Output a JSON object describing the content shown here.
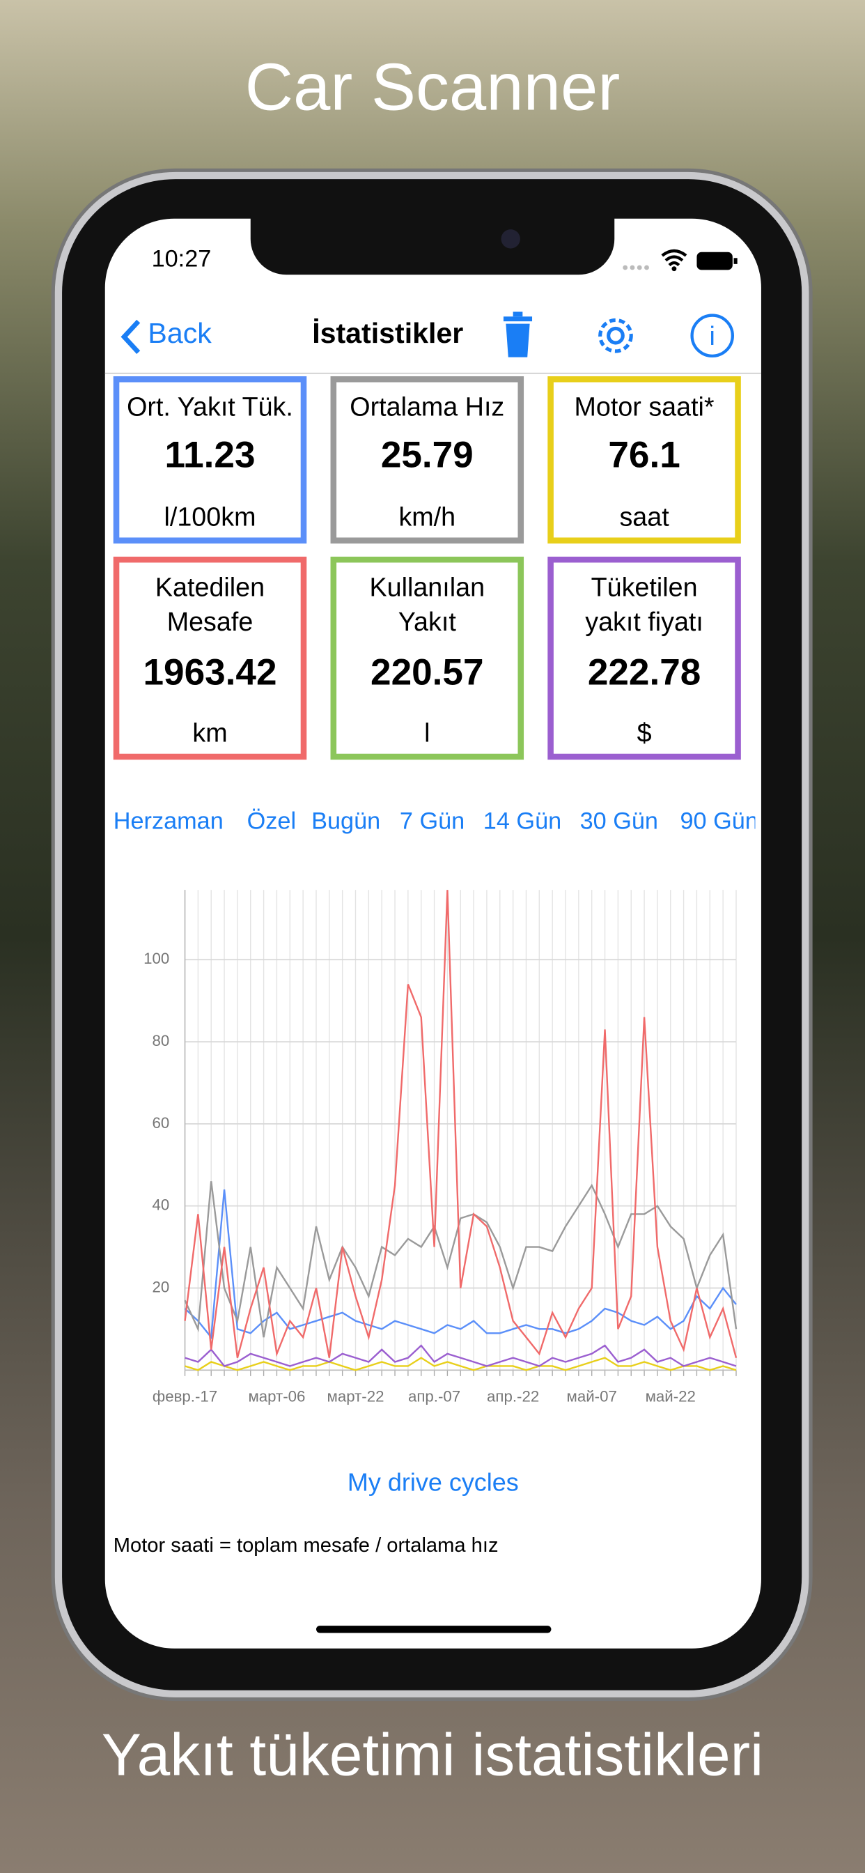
{
  "header": {
    "title": "Car Scanner",
    "tagline": "Yakıt tüketimi istatistikleri"
  },
  "status": {
    "time": "10:27"
  },
  "nav": {
    "back": "Back",
    "title": "İstatistikler"
  },
  "cards": [
    {
      "label": "Ort. Yakıt Tük.",
      "value": "11.23",
      "unit": "l/100km",
      "color": "#5b8ff9"
    },
    {
      "label": "Ortalama Hız",
      "value": "25.79",
      "unit": "km/h",
      "color": "#9a9a9a"
    },
    {
      "label": "Motor saati*",
      "value": "76.1",
      "unit": "saat",
      "color": "#e8cf1a"
    },
    {
      "label": "Katedilen Mesafe",
      "value": "1963.42",
      "unit": "km",
      "color": "#f06a6a"
    },
    {
      "label": "Kullanılan Yakıt",
      "value": "220.57",
      "unit": "l",
      "color": "#8cc65a"
    },
    {
      "label": "Tüketilen yakıt fiyatı",
      "value": "222.78",
      "unit": "$",
      "color": "#9b5fd0"
    }
  ],
  "tabs": [
    "Herzaman",
    "Özel",
    "Bugün",
    "7 Gün",
    "14 Gün",
    "30 Gün",
    "90 Gün"
  ],
  "chart_data": {
    "type": "line",
    "categories": [
      "февр.-17",
      null,
      null,
      null,
      null,
      null,
      null,
      "март-06",
      null,
      null,
      null,
      null,
      null,
      "март-22",
      null,
      null,
      null,
      null,
      null,
      "апр.-07",
      null,
      null,
      null,
      null,
      null,
      "апр.-22",
      null,
      null,
      null,
      null,
      null,
      "май-07",
      null,
      null,
      null,
      null,
      null,
      "май-22",
      null,
      null,
      null,
      null,
      null
    ],
    "ylim": [
      0,
      117
    ],
    "yticks": [
      20,
      40,
      60,
      80,
      100
    ],
    "grid": true,
    "series": [
      {
        "color": "#f06a6a",
        "values": [
          12,
          38,
          5,
          30,
          3,
          15,
          25,
          4,
          12,
          8,
          20,
          3,
          30,
          18,
          8,
          22,
          45,
          94,
          86,
          30,
          117,
          20,
          38,
          35,
          25,
          12,
          8,
          4,
          14,
          8,
          15,
          20,
          83,
          10,
          18,
          86,
          30,
          12,
          5,
          20,
          8,
          15,
          3
        ]
      },
      {
        "color": "#9a9a9a",
        "values": [
          17,
          10,
          46,
          20,
          12,
          30,
          8,
          25,
          20,
          15,
          35,
          22,
          30,
          25,
          18,
          30,
          28,
          32,
          30,
          35,
          25,
          37,
          38,
          36,
          30,
          20,
          30,
          30,
          29,
          35,
          40,
          45,
          38,
          30,
          38,
          38,
          40,
          35,
          32,
          20,
          28,
          33,
          10
        ]
      },
      {
        "color": "#5b8ff9",
        "values": [
          15,
          12,
          8,
          44,
          10,
          9,
          12,
          14,
          10,
          11,
          12,
          13,
          14,
          12,
          11,
          10,
          12,
          11,
          10,
          9,
          11,
          10,
          12,
          9,
          9,
          10,
          11,
          10,
          10,
          9,
          10,
          12,
          15,
          14,
          12,
          11,
          13,
          10,
          12,
          18,
          15,
          20,
          16
        ]
      },
      {
        "color": "#9b5fd0",
        "values": [
          3,
          2,
          5,
          1,
          2,
          4,
          3,
          2,
          1,
          2,
          3,
          2,
          4,
          3,
          2,
          5,
          2,
          3,
          6,
          2,
          4,
          3,
          2,
          1,
          2,
          3,
          2,
          1,
          3,
          2,
          3,
          4,
          6,
          2,
          3,
          5,
          2,
          3,
          1,
          2,
          3,
          2,
          1
        ]
      },
      {
        "color": "#e8cf1a",
        "values": [
          1,
          0,
          2,
          1,
          0,
          1,
          2,
          1,
          0,
          1,
          1,
          2,
          1,
          0,
          1,
          2,
          1,
          1,
          3,
          1,
          2,
          1,
          0,
          1,
          1,
          1,
          0,
          1,
          1,
          0,
          1,
          2,
          3,
          1,
          1,
          2,
          1,
          0,
          1,
          1,
          0,
          1,
          0
        ]
      }
    ]
  },
  "link": "My drive cycles",
  "footnote": "Motor saati = toplam mesafe / ortalama hız"
}
